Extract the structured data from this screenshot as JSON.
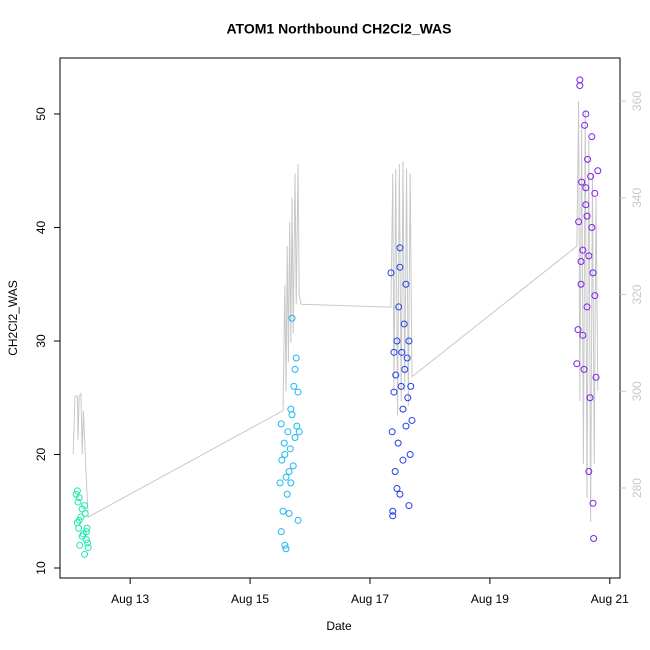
{
  "chart_data": {
    "type": "scatter",
    "title": "ATOM1 Northbound CH2Cl2_WAS",
    "x_label": "Date",
    "y_label": "CH2Cl2_WAS",
    "xlim": [
      11.83,
      21.17
    ],
    "ylim": [
      9.12,
      54.93
    ],
    "y2lim": [
      261.4,
      368.9
    ],
    "xticks": [
      {
        "value": 13,
        "label": "Aug 13"
      },
      {
        "value": 15,
        "label": "Aug 15"
      },
      {
        "value": 17,
        "label": "Aug 17"
      },
      {
        "value": 19,
        "label": "Aug 19"
      },
      {
        "value": 21,
        "label": "Aug 21"
      }
    ],
    "yticks": [
      10,
      20,
      30,
      40,
      50
    ],
    "y2ticks": [
      280,
      300,
      320,
      340,
      360
    ],
    "y2_color": "#c8c8c8",
    "series": [
      {
        "color": "#20e8b0",
        "x": [
          12.1,
          12.12,
          12.13,
          12.14,
          12.15,
          12.16,
          12.18,
          12.2,
          12.22,
          12.24,
          12.25,
          12.27,
          12.28,
          12.3,
          12.12,
          12.15,
          12.2,
          12.24,
          12.29,
          12.27
        ],
        "values": [
          16.5,
          14,
          15.8,
          13.5,
          16.2,
          12,
          14.5,
          15.2,
          13,
          11.2,
          14.8,
          12.5,
          13.5,
          11.8,
          16.8,
          14.2,
          12.8,
          15.5,
          12.2,
          13.2
        ]
      },
      {
        "color": "#1cb8f0",
        "x": [
          15.5,
          15.52,
          15.53,
          15.55,
          15.57,
          15.58,
          15.6,
          15.62,
          15.63,
          15.65,
          15.67,
          15.68,
          15.7,
          15.72,
          15.73,
          15.75,
          15.77,
          15.78,
          15.8,
          15.82,
          15.6,
          15.65,
          15.7,
          15.75,
          15.52,
          15.58,
          15.8,
          15.68
        ],
        "values": [
          17.5,
          13.2,
          19.5,
          15,
          21,
          12,
          18,
          16.5,
          22,
          14.8,
          20.5,
          17.5,
          23.5,
          19,
          26,
          21.5,
          28.5,
          22.5,
          25.5,
          22,
          11.7,
          18.5,
          32,
          27.5,
          22.7,
          20,
          14.2,
          24
        ]
      },
      {
        "color": "#2040e8",
        "x": [
          17.35,
          17.37,
          17.38,
          17.4,
          17.42,
          17.43,
          17.45,
          17.47,
          17.48,
          17.5,
          17.52,
          17.53,
          17.55,
          17.57,
          17.58,
          17.6,
          17.62,
          17.63,
          17.65,
          17.67,
          17.68,
          17.7,
          17.38,
          17.45,
          17.5,
          17.55,
          17.6,
          17.4,
          17.5,
          17.65
        ],
        "values": [
          36,
          22,
          15,
          25.5,
          18.5,
          27,
          30,
          21,
          33,
          38.2,
          26,
          29,
          24,
          31.5,
          27.5,
          22.5,
          28.5,
          25,
          30,
          20,
          26,
          23,
          14.6,
          17,
          36.5,
          19.5,
          35,
          29,
          16.5,
          15.5
        ]
      },
      {
        "color": "#7a20e8",
        "x": [
          20.45,
          20.47,
          20.48,
          20.5,
          20.52,
          20.53,
          20.55,
          20.57,
          20.58,
          20.6,
          20.62,
          20.63,
          20.65,
          20.67,
          20.68,
          20.7,
          20.72,
          20.73,
          20.75,
          20.77,
          20.5,
          20.55,
          20.6,
          20.65,
          20.7,
          20.75,
          20.8,
          20.52,
          20.62,
          20.72,
          20.6
        ],
        "values": [
          28,
          31,
          40.5,
          53,
          35,
          44,
          38,
          27.5,
          49,
          42,
          33,
          46,
          37.5,
          25,
          44.5,
          40,
          36,
          12.6,
          43,
          26.8,
          52.5,
          30.5,
          50,
          18.5,
          48,
          34,
          45,
          37,
          41,
          15.7,
          43.5
        ]
      },
      {
        "type": "line",
        "axis": "y2",
        "color": "#c8c8c8",
        "x": [
          12.05,
          12.08,
          12.12,
          12.13,
          12.15,
          12.18,
          12.2,
          12.22,
          12.25,
          12.3,
          15.55,
          15.58,
          15.6,
          15.62,
          15.64,
          15.66,
          15.68,
          15.7,
          15.72,
          15.75,
          15.77,
          15.8,
          15.82,
          15.85,
          17.35,
          17.38,
          17.4,
          17.43,
          17.46,
          17.49,
          17.52,
          17.55,
          17.58,
          17.61,
          17.64,
          17.67,
          17.7,
          20.45,
          20.48,
          20.5,
          20.53,
          20.56,
          20.59,
          20.62,
          20.65,
          20.68,
          20.71,
          20.74,
          20.77,
          20.8
        ],
        "values": [
          287,
          299,
          299,
          290,
          299,
          299.5,
          287,
          296,
          287,
          274,
          296,
          322,
          300,
          330,
          306,
          335,
          310,
          340,
          312,
          345,
          318,
          347,
          320,
          318,
          317.4,
          345,
          300,
          346,
          295,
          347,
          298,
          347.5,
          300,
          346,
          297,
          345,
          303,
          330,
          360,
          298,
          355,
          285,
          358,
          278,
          352,
          273,
          345,
          285,
          340,
          300
        ]
      }
    ]
  }
}
